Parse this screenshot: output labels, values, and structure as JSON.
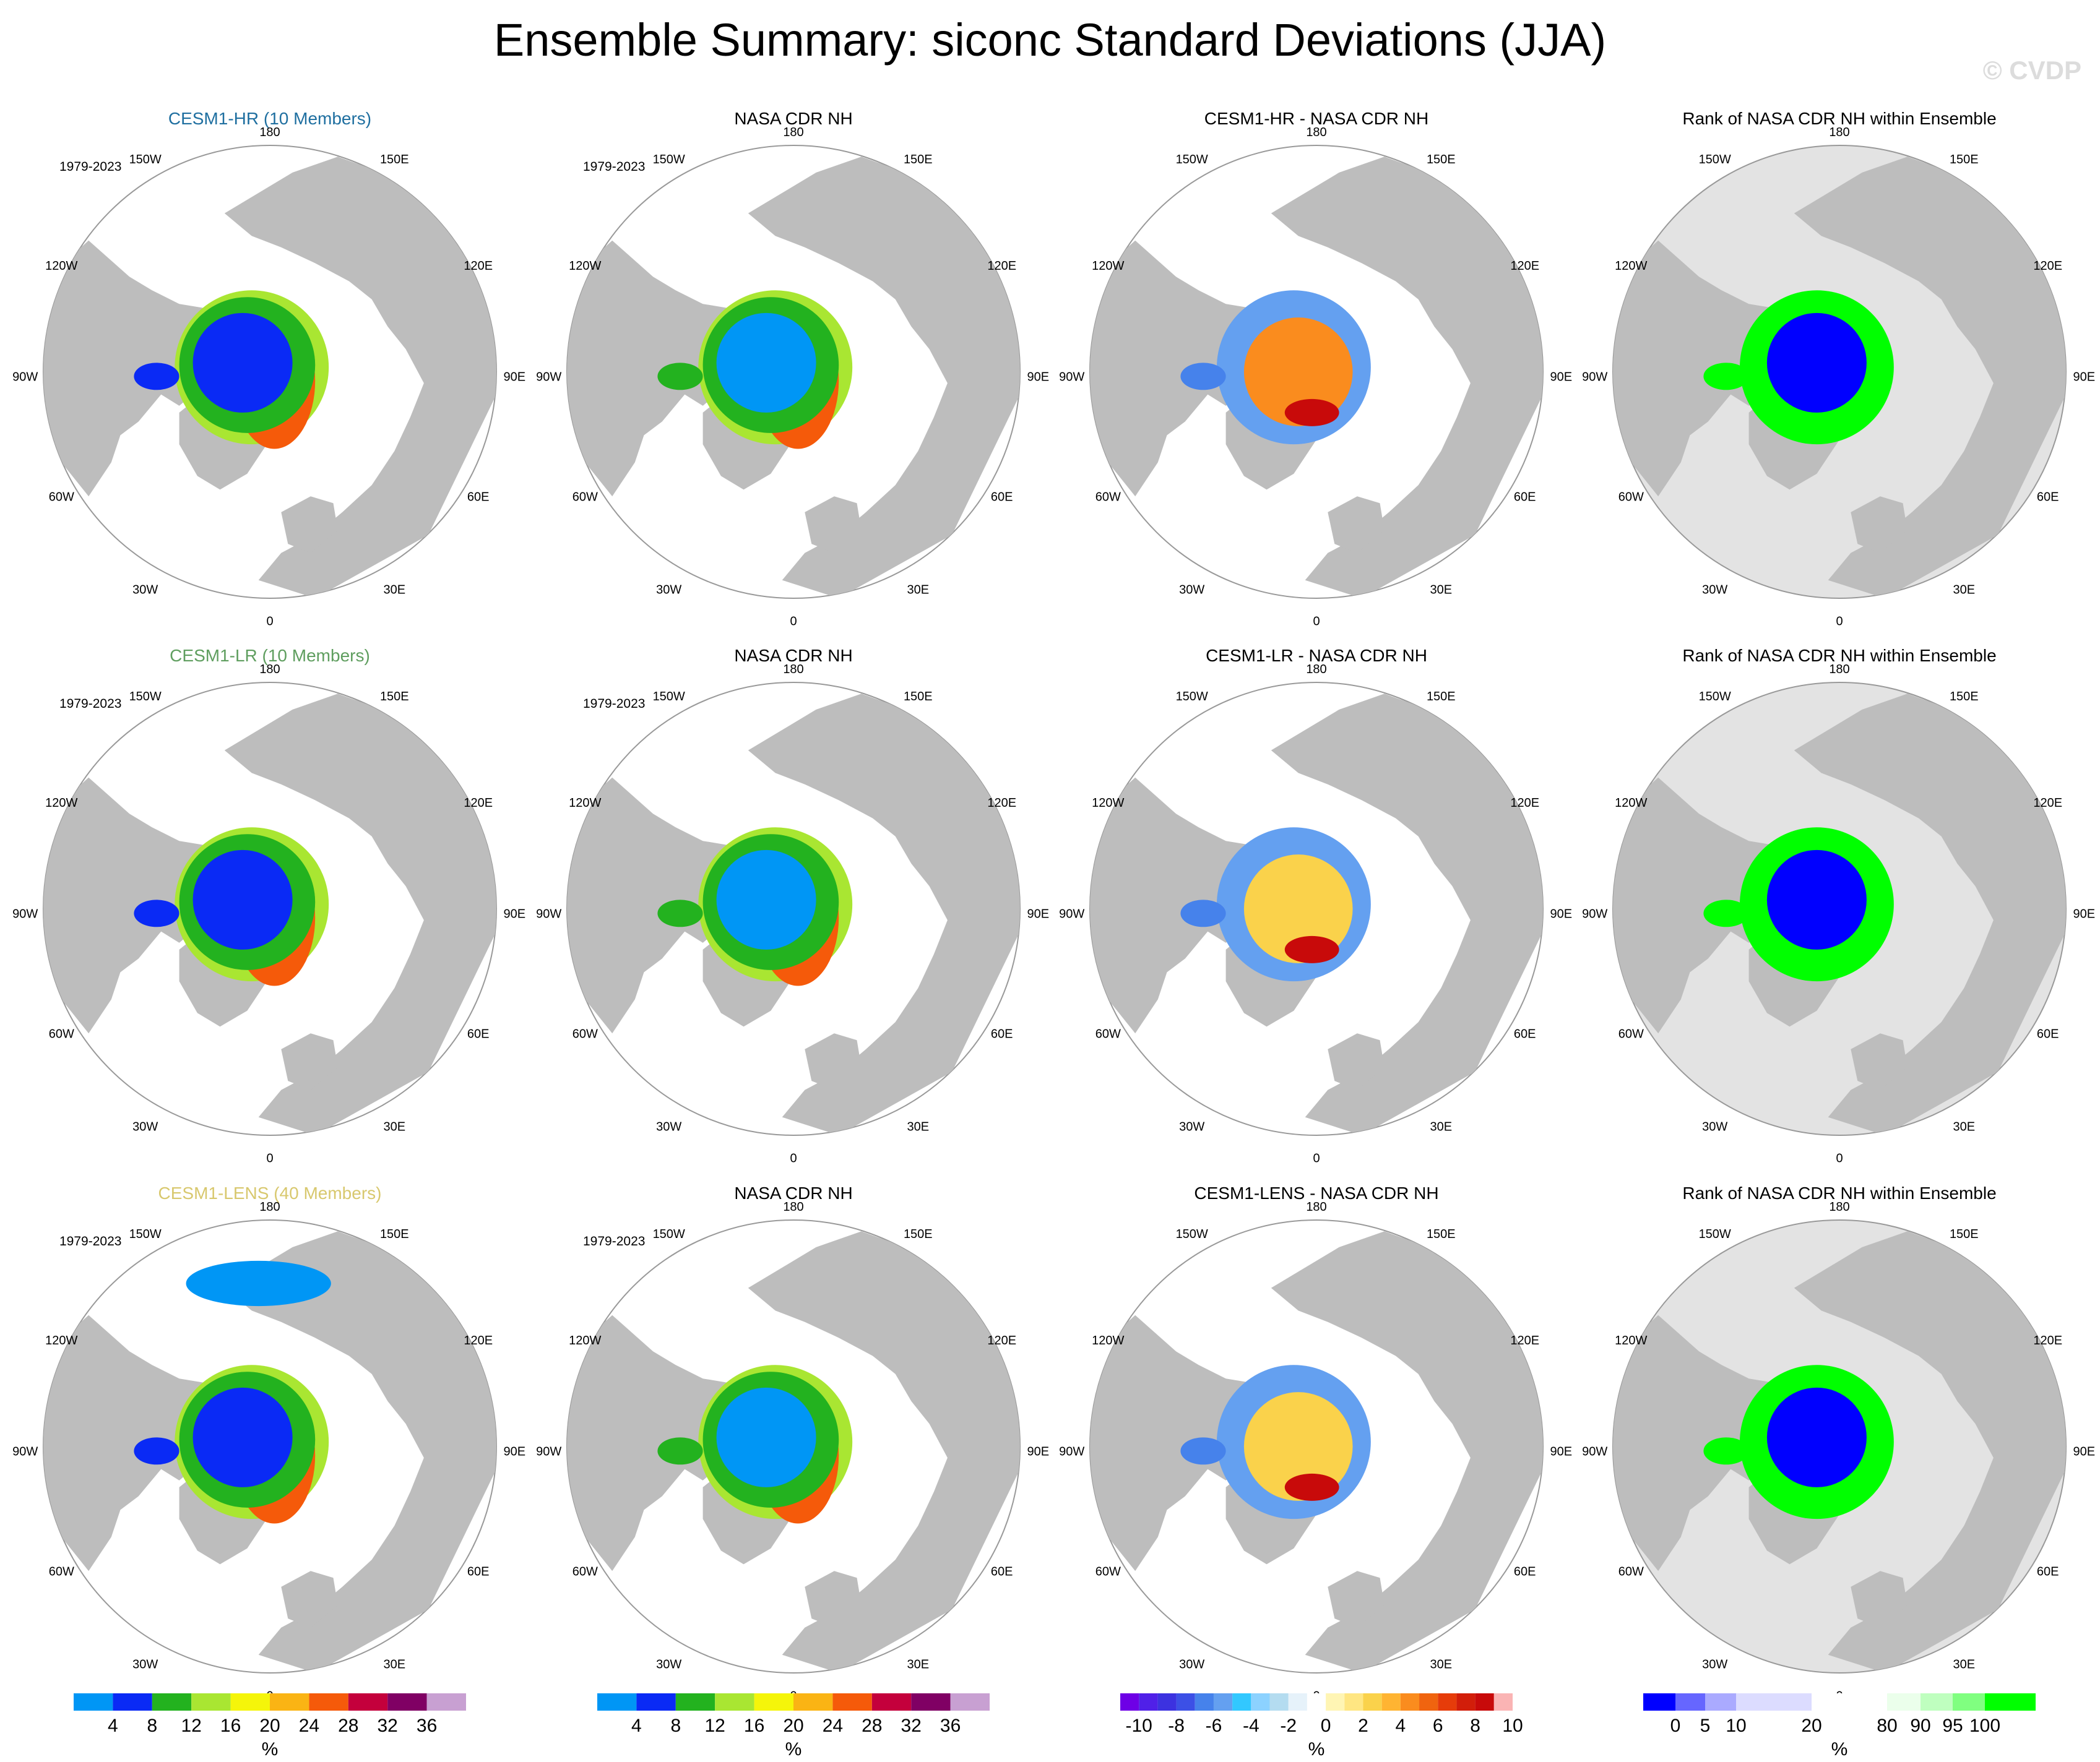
{
  "title": "Ensemble Summary: siconc Standard Deviations (JJA)",
  "watermark": "© CVDP",
  "colors": {
    "land": "#bdbdbd",
    "rank_ocean": "#e3e3e3",
    "std_levels": [
      "#0096f5",
      "#0a2af5",
      "#23b21f",
      "#a9e632",
      "#f5f50a",
      "#fab414",
      "#f55a0a",
      "#c4003c",
      "#800064",
      "#c8a0d2"
    ],
    "diff_levels": [
      "#6e00e6",
      "#5020e8",
      "#3c32e0",
      "#3c50e6",
      "#4682eb",
      "#64a0f0",
      "#32c8ff",
      "#8cd2ff",
      "#b4dcf0",
      "#e6f2fa",
      "#ffffff",
      "#fff5b4",
      "#ffe682",
      "#fad24b",
      "#ffb432",
      "#fa8c1e",
      "#f0640f",
      "#e63c0a",
      "#d21e0a",
      "#c80a0a",
      "#fab4b4"
    ],
    "rank_levels": [
      "#0000ff",
      "#6666ff",
      "#aaaaff",
      "#dcdcff",
      "#ffffff",
      "#ebffeb",
      "#bfffbf",
      "#80ff80",
      "#00ff00"
    ]
  },
  "panel_titles": [
    {
      "text": "CESM1-HR (10 Members)",
      "color": "#1f6fa0"
    },
    {
      "text": "NASA CDR NH",
      "color": "#000000"
    },
    {
      "text": "CESM1-HR - NASA CDR NH",
      "color": "#000000"
    },
    {
      "text": "Rank of NASA CDR NH within Ensemble",
      "color": "#000000"
    },
    {
      "text": "CESM1-LR (10 Members)",
      "color": "#5f9e5f"
    },
    {
      "text": "NASA CDR NH",
      "color": "#000000"
    },
    {
      "text": "CESM1-LR - NASA CDR NH",
      "color": "#000000"
    },
    {
      "text": "Rank of NASA CDR NH within Ensemble",
      "color": "#000000"
    },
    {
      "text": "CESM1-LENS (40 Members)",
      "color": "#d8c86e"
    },
    {
      "text": "NASA CDR NH",
      "color": "#000000"
    },
    {
      "text": "CESM1-LENS - NASA CDR NH",
      "color": "#000000"
    },
    {
      "text": "Rank of NASA CDR NH within Ensemble",
      "color": "#000000"
    }
  ],
  "year_range": "1979-2023",
  "lon_labels": {
    "top": "180",
    "bottom": "0",
    "left_top": "150W",
    "right_top": "150E",
    "left_upper": "120W",
    "right_upper": "120E",
    "left_mid": "90W",
    "right_mid": "90E",
    "left_lower": "60W",
    "right_lower": "60E",
    "left_bottom": "30W",
    "right_bottom": "30E"
  },
  "chart_data": {
    "type": "heatmap",
    "projection": "north polar stereographic",
    "variable": "siconc",
    "season": "JJA",
    "colorbars": [
      {
        "kind": "std",
        "labels": [
          "4",
          "8",
          "12",
          "16",
          "20",
          "24",
          "28",
          "32",
          "36"
        ],
        "units": "%"
      },
      {
        "kind": "std",
        "labels": [
          "4",
          "8",
          "12",
          "16",
          "20",
          "24",
          "28",
          "32",
          "36"
        ],
        "units": "%"
      },
      {
        "kind": "diff",
        "labels": [
          "-10",
          "-8",
          "-6",
          "-4",
          "-2",
          "0",
          "2",
          "4",
          "6",
          "8",
          "10"
        ],
        "units": "%"
      },
      {
        "kind": "rank",
        "labels": [
          "0",
          "5",
          "10",
          "20",
          "80",
          "90",
          "95",
          "100"
        ],
        "units": "%"
      }
    ]
  }
}
